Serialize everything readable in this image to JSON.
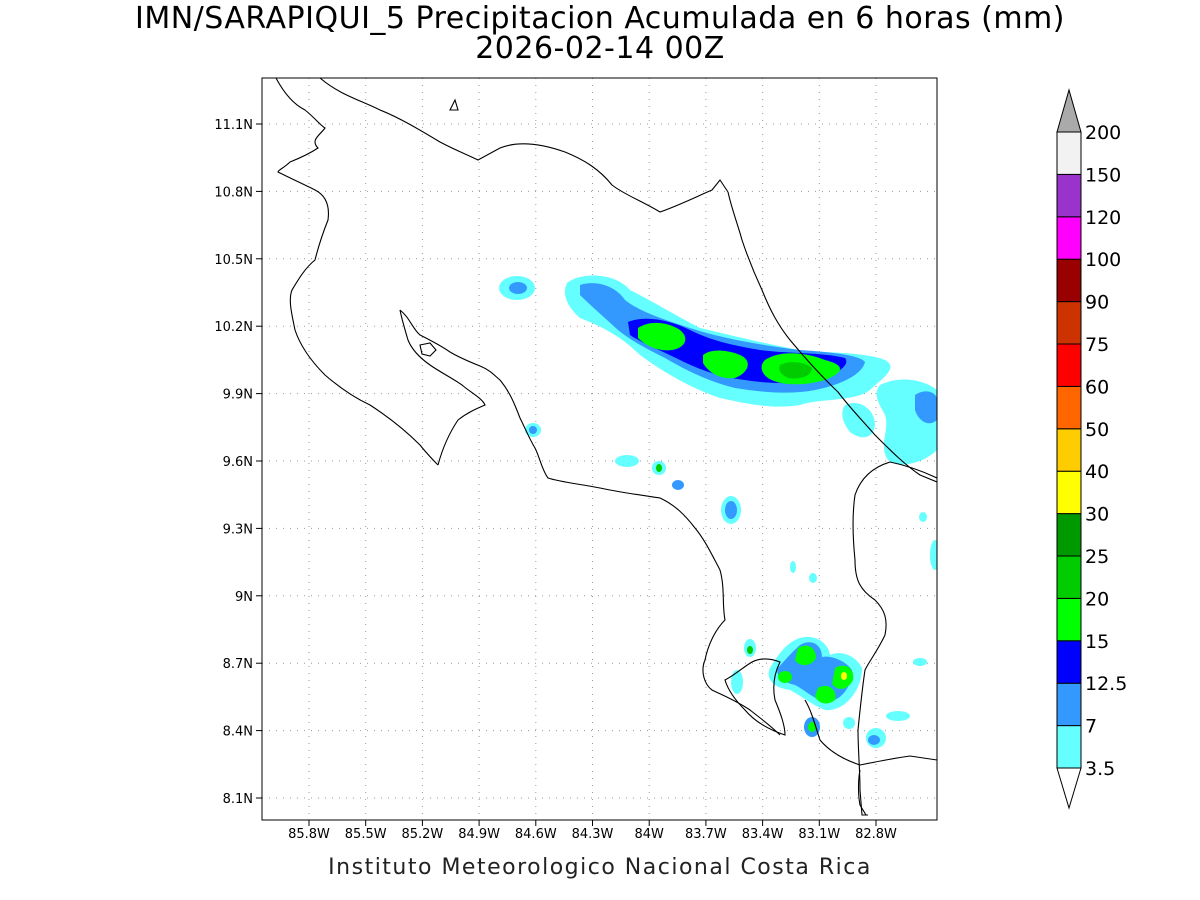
{
  "title_line1": "IMN/SARAPIQUI_5 Precipitacion Acumulada en 6 horas (mm)",
  "title_line2": "2026-02-14 00Z",
  "footer": "Instituto Meteorologico Nacional Costa Rica",
  "x_ticks": [
    "85.8W",
    "85.5W",
    "85.2W",
    "84.9W",
    "84.6W",
    "84.3W",
    "84W",
    "83.7W",
    "83.4W",
    "83.1W",
    "82.8W"
  ],
  "y_ticks": [
    "11.1N",
    "10.8N",
    "10.5N",
    "10.2N",
    "9.9N",
    "9.6N",
    "9.3N",
    "9N",
    "8.7N",
    "8.4N",
    "8.1N"
  ],
  "colorbar": {
    "labels": [
      "3.5",
      "7",
      "12.5",
      "15",
      "20",
      "25",
      "30",
      "40",
      "50",
      "60",
      "75",
      "90",
      "100",
      "120",
      "150",
      "200"
    ],
    "colors": [
      "#ffffff",
      "#66ffff",
      "#3399ff",
      "#0000ff",
      "#00ff00",
      "#00cc00",
      "#009900",
      "#ffff00",
      "#ffcc00",
      "#ff6600",
      "#ff0000",
      "#cc3300",
      "#990000",
      "#ff00ff",
      "#9933cc",
      "#f2f2f2"
    ],
    "top_arrow_color": "#aaaaaa"
  }
}
